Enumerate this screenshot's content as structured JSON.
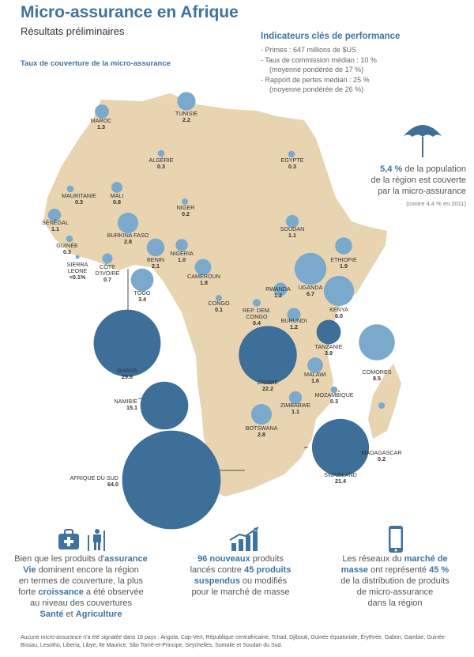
{
  "header": {
    "title": "Micro-assurance en Afrique",
    "subtitle": "Résultats préliminaires"
  },
  "map_caption": "Taux de couverture de la micro-assurance",
  "kpi": {
    "title": "Indicateurs clés de performance",
    "items": [
      {
        "text": "- Primes : 647 millions de $US",
        "note": ""
      },
      {
        "text": "- Taux de commission médian : 10 %",
        "note": "(moyenne pondérée de 17 %)"
      },
      {
        "text": "- Rapport de pertes médian : 25 %",
        "note": "(moyenne pondérée de 26 %)"
      }
    ]
  },
  "coverage": {
    "value": "5,4 %",
    "text_a": " de la population",
    "text_b": "de la région est couverte",
    "text_c": "par la micro-assurance",
    "note": "(contre 4,4 % en 2011)"
  },
  "colors": {
    "map": "#e8d4b0",
    "bubble_light": "#7ba9cc",
    "bubble_dark": "#3d6f98",
    "accent": "#3e73a0"
  },
  "chart_data": {
    "type": "bubble-map",
    "title": "Taux de couverture de la micro-assurance",
    "unit": "",
    "points": [
      {
        "name": "MAROC",
        "value": "1.3",
        "shade": "light"
      },
      {
        "name": "TUNISIE",
        "value": "2.2",
        "shade": "light"
      },
      {
        "name": "ALGÉRIE",
        "value": "0.3",
        "shade": "light"
      },
      {
        "name": "EGYPTE",
        "value": "0.3",
        "shade": "light"
      },
      {
        "name": "MAURITANIE",
        "value": "0.3",
        "shade": "light"
      },
      {
        "name": "MALI",
        "value": "0.8",
        "shade": "light"
      },
      {
        "name": "NIGER",
        "value": "0.2",
        "shade": "light"
      },
      {
        "name": "SÉNÉGAL",
        "value": "1.1",
        "shade": "light"
      },
      {
        "name": "GUINÉE",
        "value": "0.3",
        "shade": "light"
      },
      {
        "name": "SIERRA LEONE",
        "value": "<0.1%",
        "shade": "light"
      },
      {
        "name": "CÔTE D'IVOIRE",
        "value": "0.7",
        "shade": "light"
      },
      {
        "name": "BURKINA FASO",
        "value": "2.8",
        "shade": "light"
      },
      {
        "name": "BENIN",
        "value": "2.1",
        "shade": "light"
      },
      {
        "name": "NIGERIA",
        "value": "1.0",
        "shade": "light"
      },
      {
        "name": "TOGO",
        "value": "3.4",
        "shade": "light"
      },
      {
        "name": "CAMEROUN",
        "value": "1.8",
        "shade": "light"
      },
      {
        "name": "SOUDAN",
        "value": "1.1",
        "shade": "light"
      },
      {
        "name": "ETHIOPIE",
        "value": "1.9",
        "shade": "light"
      },
      {
        "name": "CONGO",
        "value": "0.1",
        "shade": "light"
      },
      {
        "name": "RWANDA",
        "value": "1.2",
        "shade": "light"
      },
      {
        "name": "REP. DEM. CONGO",
        "value": "0.4",
        "shade": "light"
      },
      {
        "name": "UGANDA",
        "value": "6.7",
        "shade": "light"
      },
      {
        "name": "KENYA",
        "value": "6.0",
        "shade": "light"
      },
      {
        "name": "BURUNDI",
        "value": "1.2",
        "shade": "light"
      },
      {
        "name": "TANZANIE",
        "value": "3.9",
        "shade": "dark"
      },
      {
        "name": "GHANA",
        "value": "29.6",
        "shade": "dark"
      },
      {
        "name": "ZAMBIE",
        "value": "22.2",
        "shade": "dark"
      },
      {
        "name": "COMORES",
        "value": "8.5",
        "shade": "light"
      },
      {
        "name": "MALAWI",
        "value": "1.6",
        "shade": "light"
      },
      {
        "name": "MOZAMBIQUE",
        "value": "0.3",
        "shade": "light"
      },
      {
        "name": "NAMIBIE",
        "value": "15.1",
        "shade": "dark"
      },
      {
        "name": "ZIMBABWE",
        "value": "1.1",
        "shade": "light"
      },
      {
        "name": "MADAGASCAR",
        "value": "0.2",
        "shade": "light"
      },
      {
        "name": "BOTSWANA",
        "value": "2.8",
        "shade": "light"
      },
      {
        "name": "AFRIQUE DU SUD",
        "value": "64.0",
        "shade": "dark"
      },
      {
        "name": "SWAZILAND",
        "value": "21.4",
        "shade": "dark"
      }
    ]
  },
  "columns": [
    {
      "icon": "health-agriculture-icon",
      "lines": [
        [
          [
            "Bien que les produits d'",
            false
          ],
          [
            "assurance",
            true
          ]
        ],
        [
          [
            "Vie",
            true
          ],
          [
            " dominent encore la région",
            false
          ]
        ],
        [
          [
            "en termes de couverture, la plus",
            false
          ]
        ],
        [
          [
            "forte ",
            false
          ],
          [
            "croissance",
            true
          ],
          [
            " a été observée",
            false
          ]
        ],
        [
          [
            "au niveau des couvertures",
            false
          ]
        ],
        [
          [
            "Santé",
            true
          ],
          [
            " et ",
            false
          ],
          [
            "Agriculture",
            true
          ]
        ]
      ]
    },
    {
      "icon": "growth-chart-icon",
      "lines": [
        [
          [
            "96 nouveaux",
            true
          ],
          [
            " produits",
            false
          ]
        ],
        [
          [
            "lancés contre ",
            false
          ],
          [
            "45 produits",
            true
          ]
        ],
        [
          [
            "suspendus",
            true
          ],
          [
            " ou modifiés",
            false
          ]
        ],
        [
          [
            "pour le marché de masse",
            false
          ]
        ]
      ]
    },
    {
      "icon": "mobile-phone-icon",
      "lines": [
        [
          [
            "Les réseaux du ",
            false
          ],
          [
            "marché de",
            true
          ]
        ],
        [
          [
            "masse",
            true
          ],
          [
            " ont représenté ",
            false
          ],
          [
            "45 %",
            true
          ]
        ],
        [
          [
            "de la distribution de produits",
            false
          ]
        ],
        [
          [
            "de micro-assurance",
            false
          ]
        ],
        [
          [
            "dans la région",
            false
          ]
        ]
      ]
    }
  ],
  "footnote": "Aucune micro-assurance n'a été signalée dans 18 pays : Angola, Cap-Vert, République centrafricaine, Tchad, Djibouti, Guinée équatoriale, Érythrée, Gabon, Gambie, Guinée-Bissau, Lesotho, Liberia, Libye, Ile Maurice, São Tomé-et-Principe, Seychelles, Somalie et Soudan du Sud."
}
